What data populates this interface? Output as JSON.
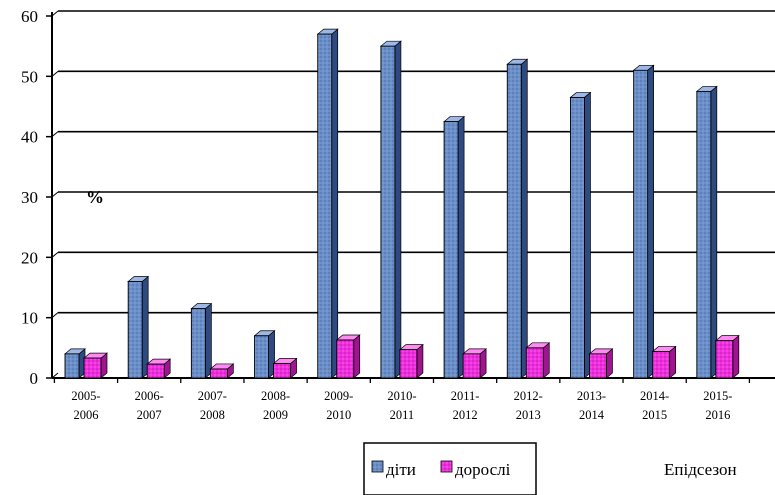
{
  "chart_data": {
    "type": "bar",
    "categories": [
      "2005-\n2006",
      "2006-\n2007",
      "2007-\n2008",
      "2008-\n2009",
      "2009-\n2010",
      "2010-\n2011",
      "2011-\n2012",
      "2012-\n2013",
      "2013-\n2014",
      "2014-\n2015",
      "2015-\n2016"
    ],
    "series": [
      {
        "name": "діти",
        "values": [
          4,
          16,
          11.5,
          7,
          57,
          55,
          42.5,
          52,
          46.5,
          51,
          47.5
        ],
        "color": "#6B8FC9"
      },
      {
        "name": "дорослі",
        "values": [
          3.3,
          2.3,
          1.5,
          2.4,
          6.3,
          4.7,
          4,
          5,
          4,
          4.4,
          6.2
        ],
        "color": "#F02EE0"
      }
    ],
    "unit_label": "%",
    "xlabel": "Епідсезон",
    "ylim": [
      0,
      60
    ],
    "yticks": [
      0,
      10,
      20,
      30,
      40,
      50,
      60
    ],
    "grid": true,
    "legend_position": "bottom-center",
    "style": "3d-columns"
  }
}
